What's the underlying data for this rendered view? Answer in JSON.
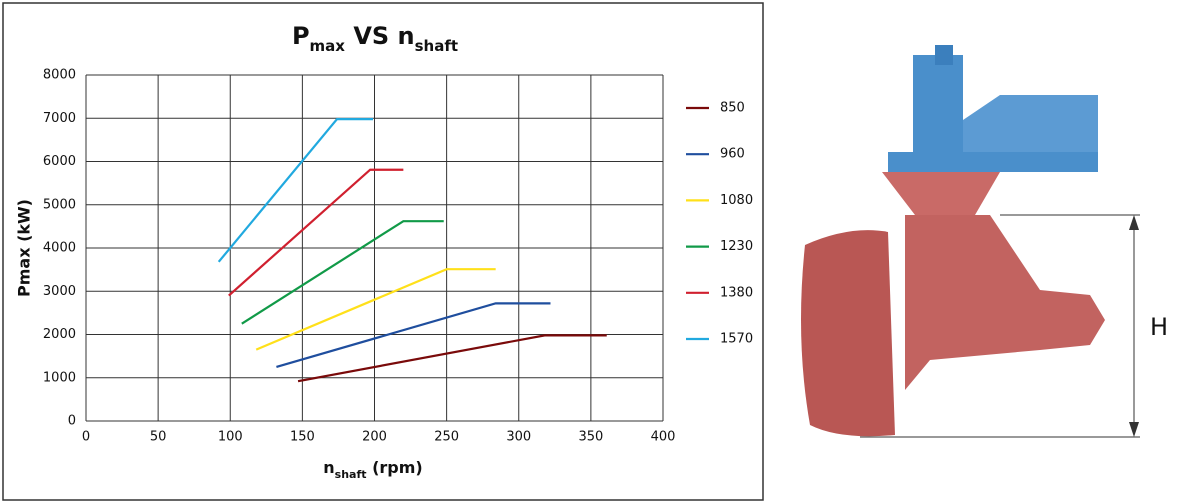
{
  "chart_data": {
    "type": "line",
    "title": [
      {
        "text": "P"
      },
      {
        "text": "max",
        "sub": true
      },
      {
        "text": " VS n"
      },
      {
        "text": "shaft",
        "sub": true
      }
    ],
    "x_label": [
      {
        "text": "n"
      },
      {
        "text": "shaft",
        "sub": true
      },
      {
        "text": " (rpm)"
      }
    ],
    "y_label": "Pmax (kW)",
    "xlim": [
      0,
      400
    ],
    "xticks": [
      0,
      50,
      100,
      150,
      200,
      250,
      300,
      350,
      400
    ],
    "ylim": [
      0,
      8000
    ],
    "yticks": [
      0,
      1000,
      2000,
      3000,
      4000,
      5000,
      6000,
      7000,
      8000
    ],
    "grid": true,
    "legend": "right",
    "series": [
      {
        "name": "850",
        "color": "#7a0a0a",
        "x": [
          147,
          318,
          361
        ],
        "values": [
          920,
          1980,
          1980
        ]
      },
      {
        "name": "960",
        "color": "#1f4e9e",
        "x": [
          132,
          284,
          322
        ],
        "values": [
          1250,
          2720,
          2720
        ]
      },
      {
        "name": "1080",
        "color": "#ffe01a",
        "x": [
          118,
          250,
          284
        ],
        "values": [
          1650,
          3510,
          3510
        ]
      },
      {
        "name": "1230",
        "color": "#119a48",
        "x": [
          108,
          220,
          248
        ],
        "values": [
          2250,
          4620,
          4620
        ]
      },
      {
        "name": "1380",
        "color": "#d0202f",
        "x": [
          99,
          197,
          220
        ],
        "values": [
          2900,
          5810,
          5810
        ]
      },
      {
        "name": "1570",
        "color": "#21a9df",
        "x": [
          92,
          174,
          199
        ],
        "values": [
          3680,
          6980,
          6980
        ]
      }
    ]
  },
  "image": {
    "dimension_label": "H"
  }
}
